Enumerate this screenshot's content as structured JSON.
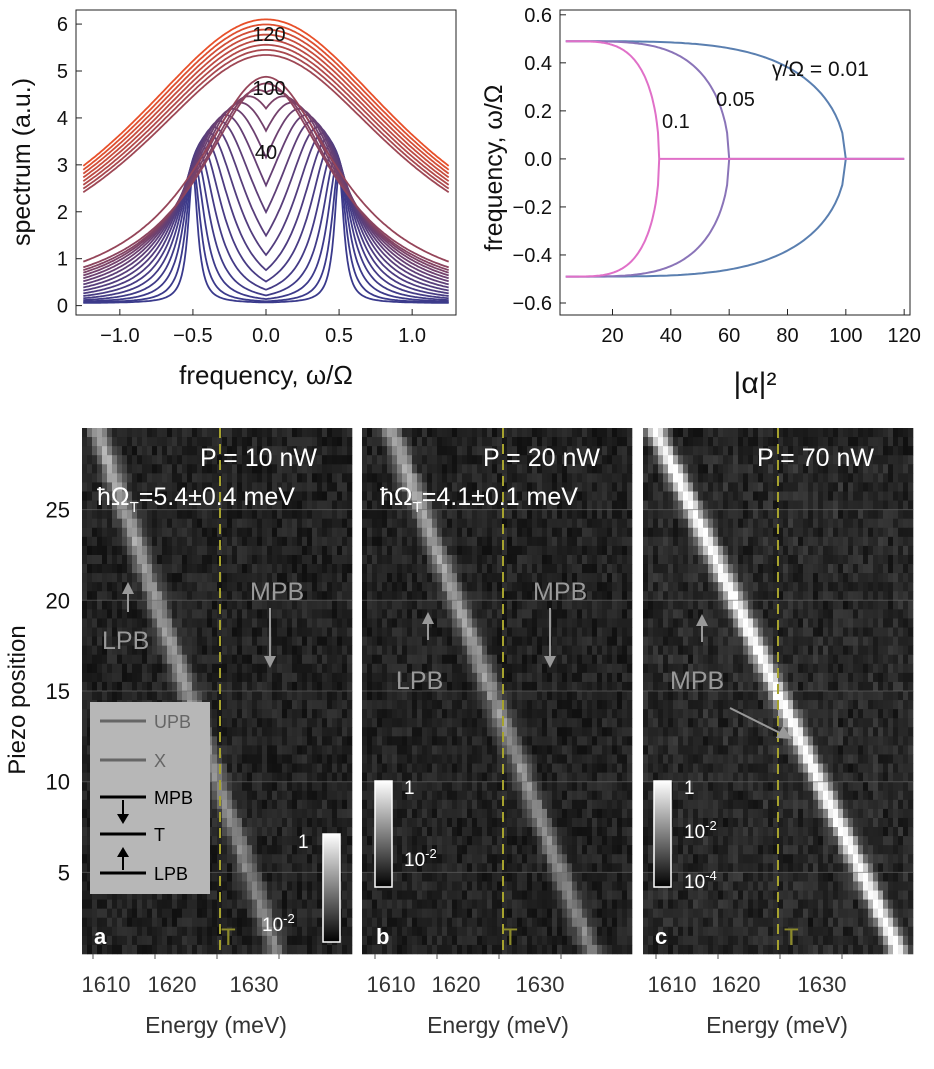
{
  "top_left": {
    "ylabel": "spectrum  (a.u.)",
    "xlabel": "frequency, ω/Ω",
    "xticks": [
      "−1.0",
      "−0.5",
      "0.0",
      "0.5",
      "1.0"
    ],
    "yticks": [
      "0",
      "1",
      "2",
      "3",
      "4",
      "5",
      "6"
    ],
    "annotations": [
      "120",
      "100",
      "40"
    ]
  },
  "top_right": {
    "ylabel": "frequency, ω/Ω",
    "xlabel": "|α|²",
    "xticks": [
      "20",
      "40",
      "60",
      "80",
      "100",
      "120"
    ],
    "yticks": [
      "0.6",
      "0.4",
      "0.2",
      "0.0",
      "−0.2",
      "−0.4",
      "−0.6"
    ],
    "gamma_label": "γ/Ω  = 0.01",
    "label_005": "0.05",
    "label_01": "0.1"
  },
  "bottom": {
    "ylabel": "Piezo position",
    "yticks": [
      "25",
      "20",
      "15",
      "10",
      "5"
    ],
    "panels": [
      {
        "letter": "a",
        "power": "P = 10 nW",
        "omega": "ħΩ",
        "omega_sub": "T",
        "omega_val": "=5.4±0.4 meV",
        "arrow_up_label": "LPB",
        "arrow_down_label": "MPB",
        "T_label": "T",
        "cbar_top": "1",
        "cbar_mid": "10",
        "cbar_mid_exp": "-2",
        "xticks": [
          "1610",
          "1620",
          "1630"
        ],
        "xlabel": "Energy (meV)"
      },
      {
        "letter": "b",
        "power": "P = 20 nW",
        "omega": "ħΩ",
        "omega_sub": "T",
        "omega_val": "=4.1±0.1 meV",
        "arrow_up_label": "LPB",
        "arrow_down_label": "MPB",
        "T_label": "T",
        "cbar_top": "1",
        "cbar_mid": "10",
        "cbar_mid_exp": "-2",
        "xticks": [
          "1610",
          "1620",
          "1630"
        ],
        "xlabel": "Energy (meV)"
      },
      {
        "letter": "c",
        "power": "P = 70 nW",
        "arrow_up_label": "MPB",
        "T_label": "T",
        "cbar_top": "1",
        "cbar_mid": "10",
        "cbar_mid_exp": "-2",
        "cbar_bot": "10",
        "cbar_bot_exp": "-4",
        "xticks": [
          "1610",
          "1620",
          "1630"
        ],
        "xlabel": "Energy (meV)"
      }
    ],
    "legend": [
      "UPB",
      "X",
      "MPB",
      "T",
      "LPB"
    ]
  },
  "chart_data": [
    {
      "type": "line",
      "title": "",
      "xlabel": "frequency, ω/Ω",
      "ylabel": "spectrum  (a.u.)",
      "xlim": [
        -1.3,
        1.3
      ],
      "ylim": [
        -0.2,
        6.3
      ],
      "series_description_values": [
        0,
        5,
        10,
        15,
        20,
        25,
        30,
        35,
        40,
        45,
        50,
        55,
        60,
        65,
        70,
        75,
        80,
        85,
        90,
        95,
        100,
        105,
        110,
        115,
        120
      ],
      "labelled_curves": [
        "120",
        "100",
        "40"
      ],
      "colors": {
        "low": "#3a3a8c",
        "high": "#e8502a"
      }
    },
    {
      "type": "line",
      "title": "",
      "xlabel": "|α|²",
      "ylabel": "frequency, ω/Ω",
      "xlim": [
        2,
        122
      ],
      "ylim": [
        -0.65,
        0.62
      ],
      "series": [
        {
          "name": "γ/Ω = 0.01",
          "color": "#5a7fb0",
          "threshold": 100
        },
        {
          "name": "0.05",
          "color": "#8a74b8",
          "threshold": 60
        },
        {
          "name": "0.1",
          "color": "#e070c8",
          "threshold": 36
        }
      ]
    },
    {
      "type": "heatmap",
      "xlabel": "Energy (meV)",
      "ylabel": "Piezo position",
      "panels": [
        "a",
        "b",
        "c"
      ]
    }
  ]
}
